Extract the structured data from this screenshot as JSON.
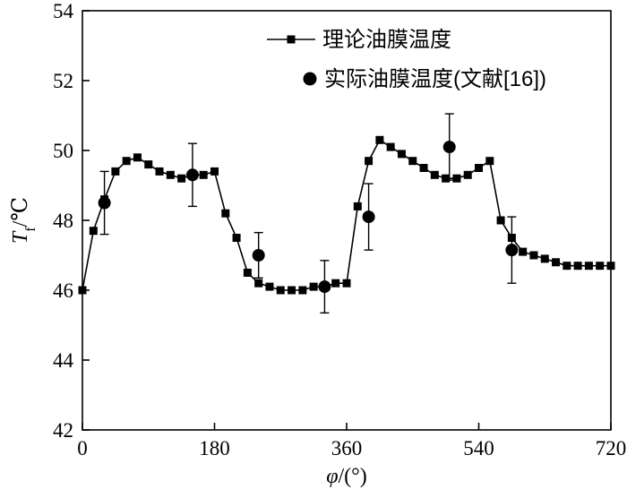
{
  "figure": {
    "background": "#ffffff",
    "ink_color": "#000000"
  },
  "chart_data": {
    "type": "line",
    "title": "",
    "xlabel": {
      "symbol": "φ",
      "unit": "/(°)"
    },
    "ylabel": {
      "symbol": "T",
      "subscript": "f",
      "unit": "/℃"
    },
    "xlim": [
      0,
      720
    ],
    "ylim": [
      42,
      54
    ],
    "xticks": [
      0,
      180,
      360,
      540,
      720
    ],
    "yticks": [
      42,
      44,
      46,
      48,
      50,
      52,
      54
    ],
    "grid": false,
    "legend_position": "top-center",
    "series": [
      {
        "name": "理论油膜温度",
        "type": "line",
        "marker": "square",
        "color": "#000000",
        "x": [
          0,
          15,
          30,
          45,
          60,
          75,
          90,
          105,
          120,
          135,
          150,
          165,
          180,
          195,
          210,
          225,
          240,
          255,
          270,
          285,
          300,
          315,
          330,
          345,
          360,
          375,
          390,
          405,
          420,
          435,
          450,
          465,
          480,
          495,
          510,
          525,
          540,
          555,
          570,
          585,
          600,
          615,
          630,
          645,
          660,
          675,
          690,
          705,
          720
        ],
        "y": [
          46.0,
          47.7,
          48.6,
          49.4,
          49.7,
          49.8,
          49.6,
          49.4,
          49.3,
          49.2,
          49.3,
          49.3,
          49.4,
          48.2,
          47.5,
          46.5,
          46.2,
          46.1,
          46.0,
          46.0,
          46.0,
          46.1,
          46.1,
          46.2,
          46.2,
          48.4,
          49.7,
          50.3,
          50.1,
          49.9,
          49.7,
          49.5,
          49.3,
          49.2,
          49.2,
          49.3,
          49.5,
          49.7,
          48.0,
          47.5,
          47.1,
          47.0,
          46.9,
          46.8,
          46.7,
          46.7,
          46.7,
          46.7,
          46.7
        ]
      },
      {
        "name": "实际油膜温度(文献[16])",
        "type": "scatter",
        "marker": "circle",
        "errorbars": true,
        "color": "#000000",
        "x": [
          30,
          150,
          240,
          330,
          390,
          500,
          585
        ],
        "y": [
          48.5,
          49.3,
          47.0,
          46.1,
          48.1,
          50.1,
          47.15
        ],
        "yerr": [
          0.9,
          0.9,
          0.65,
          0.75,
          0.95,
          0.95,
          0.95
        ]
      }
    ]
  }
}
